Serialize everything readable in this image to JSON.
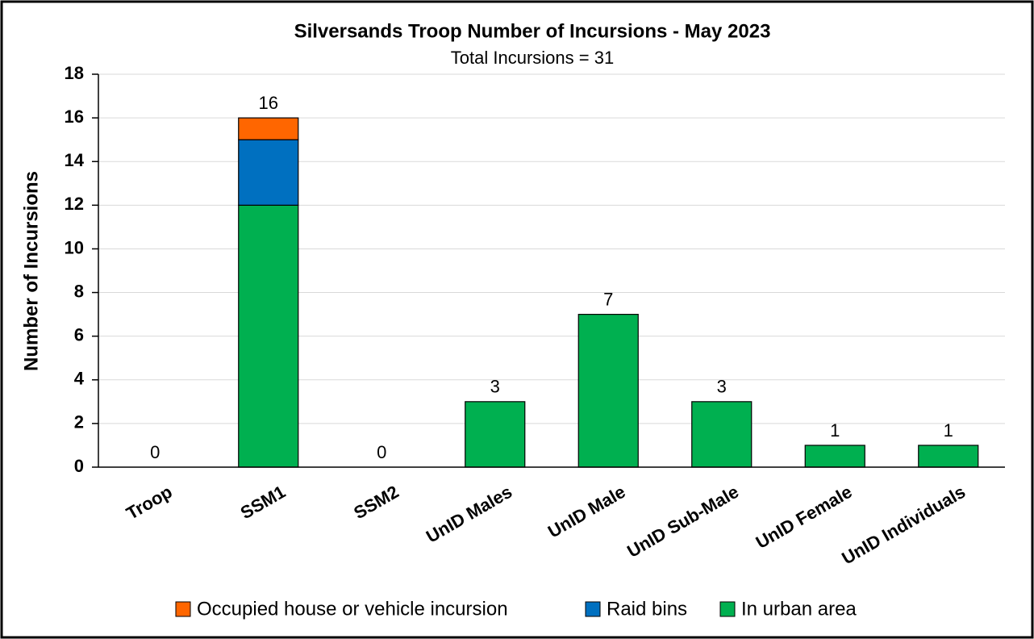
{
  "chart_data": {
    "type": "stacked_bar",
    "title": "Silversands Troop Number of Incursions - May 2023",
    "subtitle": "Total Incursions = 31",
    "ylabel": "Number of Incursions",
    "categories": [
      "Troop",
      "SSM1",
      "SSM2",
      "UnID Males",
      "UnID Male",
      "UnID Sub-Male",
      "UnID Female",
      "UnID Individuals"
    ],
    "series": [
      {
        "name": "Occupied house or vehicle incursion",
        "color": "#ff6600",
        "values": [
          0,
          1,
          0,
          0,
          0,
          0,
          0,
          0
        ]
      },
      {
        "name": "Raid bins",
        "color": "#0070c0",
        "values": [
          0,
          3,
          0,
          0,
          0,
          0,
          0,
          0
        ]
      },
      {
        "name": "In urban area",
        "color": "#00b050",
        "values": [
          0,
          12,
          0,
          3,
          7,
          3,
          1,
          1
        ]
      }
    ],
    "totals": [
      0,
      16,
      0,
      3,
      7,
      3,
      1,
      1
    ],
    "ylim": [
      0,
      18
    ],
    "yticks": [
      0,
      2,
      4,
      6,
      8,
      10,
      12,
      14,
      16,
      18
    ],
    "grid": true,
    "legend": "bottom"
  }
}
